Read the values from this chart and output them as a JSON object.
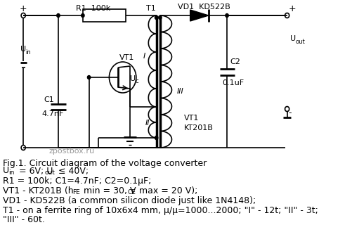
{
  "fig_caption": "Fig.1. Circuit diagram of the voltage converter",
  "watermark": "zpostbox.ru",
  "bg_color": "#ffffff",
  "fg_color": "#000000",
  "gray_color": "#999999",
  "line1_parts": [
    "U",
    "in",
    " = 6V; U",
    "out",
    " ≤ 40V;"
  ],
  "line2": "R1 = 100k; C1=4.7nF; C2=0.1μF;",
  "line3_parts": [
    "VT1 - KT201B (h",
    "FE",
    " min = 30, V",
    "CE",
    " max = 20 V);"
  ],
  "line4": "VD1 - KD522B (a common silicon diode just like 1N4148);",
  "line5": "T1 - on a ferrite ring of 10x6x4 mm, μ/μ=1000...2000; \"I\" - 12t; \"II\" - 3t;",
  "line6": "\"III\" - 60t."
}
